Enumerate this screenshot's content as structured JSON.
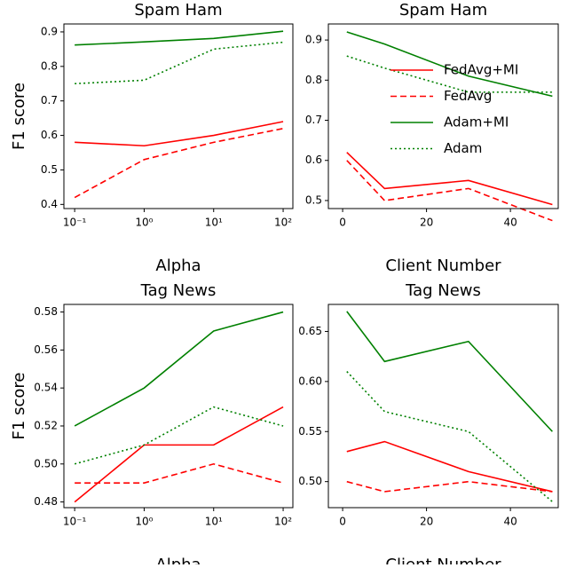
{
  "chart_data": [
    {
      "type": "line",
      "title": "Spam Ham",
      "xlabel": "Alpha",
      "ylabel": "F1 score",
      "xscale": "log",
      "x": [
        0.1,
        1,
        10,
        100
      ],
      "xlim": [
        0.07,
        138
      ],
      "xticks": [
        {
          "value": 0.1,
          "label": "10⁻¹"
        },
        {
          "value": 1,
          "label": "10⁰"
        },
        {
          "value": 10,
          "label": "10¹"
        },
        {
          "value": 100,
          "label": "10²"
        }
      ],
      "ylim": [
        0.388,
        0.923
      ],
      "yticks": [
        0.4,
        0.5,
        0.6,
        0.7,
        0.8,
        0.9
      ],
      "series": [
        {
          "name": "FedAvg+MI",
          "color": "#ff0000",
          "linestyle": "solid",
          "values": [
            0.58,
            0.57,
            0.6,
            0.64
          ]
        },
        {
          "name": "FedAvg",
          "color": "#ff0000",
          "linestyle": "dashed",
          "values": [
            0.42,
            0.53,
            0.58,
            0.62
          ]
        },
        {
          "name": "Adam+MI",
          "color": "#008000",
          "linestyle": "solid",
          "values": [
            0.862,
            0.871,
            0.881,
            0.902
          ]
        },
        {
          "name": "Adam",
          "color": "#008000",
          "linestyle": "dotted",
          "values": [
            0.75,
            0.76,
            0.85,
            0.87
          ]
        }
      ]
    },
    {
      "type": "line",
      "title": "Spam Ham",
      "xlabel": "Client Number",
      "legend": "center right",
      "x": [
        1,
        10,
        30,
        50
      ],
      "xlim": [
        -3.4,
        51.4
      ],
      "xticks": [
        0,
        20,
        40
      ],
      "ylim": [
        0.48,
        0.94
      ],
      "yticks": [
        0.5,
        0.6,
        0.7,
        0.8,
        0.9
      ],
      "series": [
        {
          "name": "FedAvg+MI",
          "color": "#ff0000",
          "linestyle": "solid",
          "values": [
            0.62,
            0.53,
            0.55,
            0.49
          ]
        },
        {
          "name": "FedAvg",
          "color": "#ff0000",
          "linestyle": "dashed",
          "values": [
            0.6,
            0.5,
            0.53,
            0.45
          ]
        },
        {
          "name": "Adam+MI",
          "color": "#008000",
          "linestyle": "solid",
          "values": [
            0.92,
            0.89,
            0.81,
            0.76
          ]
        },
        {
          "name": "Adam",
          "color": "#008000",
          "linestyle": "dotted",
          "values": [
            0.86,
            0.83,
            0.77,
            0.77
          ]
        }
      ]
    },
    {
      "type": "line",
      "title": "Tag News",
      "xlabel": "Alpha",
      "ylabel": "F1 score",
      "xscale": "log",
      "x": [
        0.1,
        1,
        10,
        100
      ],
      "xlim": [
        0.07,
        138
      ],
      "xticks": [
        {
          "value": 0.1,
          "label": "10⁻¹"
        },
        {
          "value": 1,
          "label": "10⁰"
        },
        {
          "value": 10,
          "label": "10¹"
        },
        {
          "value": 100,
          "label": "10²"
        }
      ],
      "ylim": [
        0.477,
        0.584
      ],
      "yticks": [
        0.48,
        {
          "value": 0.5,
          "label": "0.50"
        },
        0.52,
        0.54,
        0.56,
        0.58
      ],
      "series": [
        {
          "color": "#ff0000",
          "linestyle": "solid",
          "values": [
            0.48,
            0.51,
            0.51,
            0.53
          ]
        },
        {
          "color": "#ff0000",
          "linestyle": "dashed",
          "values": [
            0.49,
            0.49,
            0.5,
            0.49
          ]
        },
        {
          "color": "#008000",
          "linestyle": "solid",
          "values": [
            0.52,
            0.54,
            0.57,
            0.58
          ]
        },
        {
          "color": "#008000",
          "linestyle": "dotted",
          "values": [
            0.5,
            0.51,
            0.53,
            0.52
          ]
        }
      ]
    },
    {
      "type": "line",
      "title": "Tag News",
      "xlabel": "Client Number",
      "x": [
        1,
        10,
        30,
        50
      ],
      "xlim": [
        -3.4,
        51.4
      ],
      "xticks": [
        0,
        20,
        40
      ],
      "ylim": [
        0.474,
        0.677
      ],
      "yticks": [
        {
          "value": 0.5,
          "label": "0.50"
        },
        0.55,
        {
          "value": 0.6,
          "label": "0.60"
        },
        0.65
      ],
      "series": [
        {
          "color": "#ff0000",
          "linestyle": "solid",
          "values": [
            0.53,
            0.54,
            0.51,
            0.49
          ]
        },
        {
          "color": "#ff0000",
          "linestyle": "dashed",
          "values": [
            0.5,
            0.49,
            0.5,
            0.49
          ]
        },
        {
          "color": "#008000",
          "linestyle": "solid",
          "values": [
            0.67,
            0.62,
            0.64,
            0.55
          ]
        },
        {
          "color": "#008000",
          "linestyle": "dotted",
          "values": [
            0.61,
            0.57,
            0.55,
            0.48
          ]
        }
      ]
    }
  ]
}
